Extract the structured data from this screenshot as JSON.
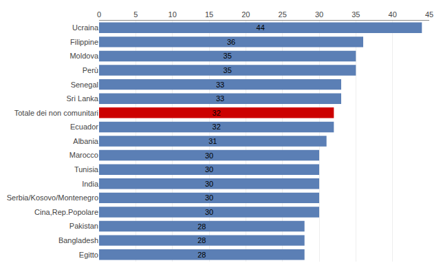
{
  "chart_data": {
    "type": "bar",
    "orientation": "horizontal",
    "categories": [
      "Egitto",
      "Bangladesh",
      "Pakistan",
      "Cina,Rep.Popolare",
      "Serbia/Kosovo/Montenegro",
      "India",
      "Tunisia",
      "Marocco",
      "Albania",
      "Ecuador",
      "Totale dei non comunitari",
      "Sri Lanka",
      "Senegal",
      "Perù",
      "Moldova",
      "Filippine",
      "Ucraina"
    ],
    "values": [
      28,
      28,
      28,
      30,
      30,
      30,
      30,
      30,
      31,
      32,
      32,
      33,
      33,
      35,
      35,
      36,
      44
    ],
    "colors": [
      "#5B7FB5",
      "#5B7FB5",
      "#5B7FB5",
      "#5B7FB5",
      "#5B7FB5",
      "#5B7FB5",
      "#5B7FB5",
      "#5B7FB5",
      "#5B7FB5",
      "#5B7FB5",
      "#CC0000",
      "#5B7FB5",
      "#5B7FB5",
      "#5B7FB5",
      "#5B7FB5",
      "#5B7FB5",
      "#5B7FB5"
    ],
    "xlim": [
      0,
      45
    ],
    "xticks": [
      0,
      5,
      10,
      15,
      20,
      25,
      30,
      35,
      40,
      45
    ],
    "grid": true,
    "data_labels": true
  }
}
